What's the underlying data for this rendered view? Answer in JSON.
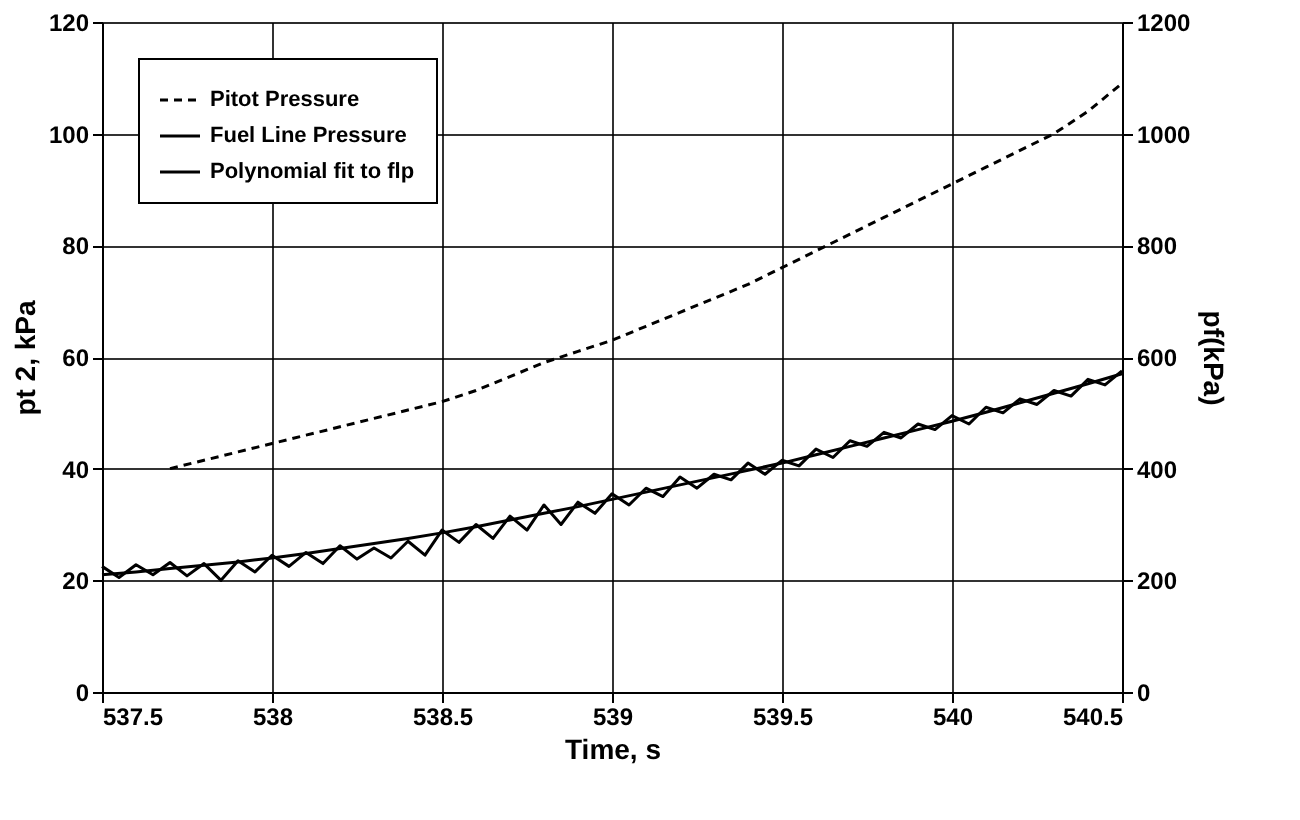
{
  "chart_data": {
    "type": "line",
    "xlabel": "Time, s",
    "ylabel": "pt 2, kPa",
    "y2label": "pf(kPa)",
    "xlim": [
      537.5,
      540.5
    ],
    "xticks": [
      537.5,
      538,
      538.5,
      539,
      539.5,
      540,
      540.5
    ],
    "ylim": [
      0,
      120
    ],
    "yticks": [
      0,
      20,
      40,
      60,
      80,
      100,
      120
    ],
    "y2lim": [
      0,
      1200
    ],
    "y2ticks": [
      0,
      200,
      400,
      600,
      800,
      1000,
      1200
    ],
    "grid": true,
    "legend": "top left",
    "marker": "none",
    "series": [
      {
        "name": "Pitot Pressure",
        "color": "#000000",
        "line_style": "dashed",
        "x": [
          537.7,
          537.8,
          537.9,
          538.0,
          538.1,
          538.2,
          538.3,
          538.4,
          538.5,
          538.6,
          538.7,
          538.8,
          538.9,
          539.0,
          539.1,
          539.2,
          539.3,
          539.4,
          539.5,
          539.6,
          539.7,
          539.8,
          539.9,
          540.0,
          540.1,
          540.2,
          540.3,
          540.4,
          540.5
        ],
        "values": [
          40,
          41.5,
          43,
          44.5,
          46,
          47.5,
          49,
          50.5,
          52,
          54,
          56.5,
          59,
          61,
          63,
          65.5,
          68,
          70.5,
          73,
          76,
          79,
          82,
          85,
          88,
          91,
          94,
          97,
          100,
          104,
          109
        ]
      },
      {
        "name": "Fuel Line Pressure",
        "color": "#000000",
        "line_style": "solid",
        "axis": "y2",
        "x": [
          537.5,
          537.55,
          537.6,
          537.65,
          537.7,
          537.75,
          537.8,
          537.85,
          537.9,
          537.95,
          538.0,
          538.05,
          538.1,
          538.15,
          538.2,
          538.25,
          538.3,
          538.35,
          538.4,
          538.45,
          538.5,
          538.55,
          538.6,
          538.65,
          538.7,
          538.75,
          538.8,
          538.85,
          538.9,
          538.95,
          539.0,
          539.05,
          539.1,
          539.15,
          539.2,
          539.25,
          539.3,
          539.35,
          539.4,
          539.45,
          539.5,
          539.55,
          539.6,
          539.65,
          539.7,
          539.75,
          539.8,
          539.85,
          539.9,
          539.95,
          540.0,
          540.05,
          540.1,
          540.15,
          540.2,
          540.25,
          540.3,
          540.35,
          540.4,
          540.45,
          540.5
        ],
        "values": [
          225,
          205,
          228,
          210,
          232,
          208,
          230,
          200,
          235,
          215,
          245,
          225,
          250,
          230,
          262,
          238,
          258,
          240,
          270,
          245,
          290,
          268,
          300,
          275,
          315,
          290,
          335,
          300,
          340,
          320,
          355,
          335,
          365,
          350,
          385,
          365,
          390,
          380,
          410,
          390,
          415,
          405,
          435,
          420,
          450,
          440,
          465,
          455,
          480,
          470,
          495,
          480,
          510,
          500,
          525,
          515,
          540,
          530,
          560,
          550,
          575
        ]
      },
      {
        "name": "Polynomial fit to flp",
        "color": "#000000",
        "line_style": "solid",
        "axis": "y2",
        "x": [
          537.5,
          537.6,
          537.7,
          537.8,
          537.9,
          538.0,
          538.1,
          538.2,
          538.3,
          538.4,
          538.5,
          538.6,
          538.7,
          538.8,
          538.9,
          539.0,
          539.1,
          539.2,
          539.3,
          539.4,
          539.5,
          539.6,
          539.7,
          539.8,
          539.9,
          540.0,
          540.1,
          540.2,
          540.3,
          540.4,
          540.5
        ],
        "values": [
          210,
          215,
          221,
          227,
          233,
          240,
          248,
          257,
          266,
          275,
          285,
          296,
          308,
          320,
          332,
          345,
          358,
          371,
          384,
          397,
          410,
          425,
          440,
          455,
          470,
          485,
          501,
          518,
          535,
          552,
          570
        ]
      }
    ]
  }
}
